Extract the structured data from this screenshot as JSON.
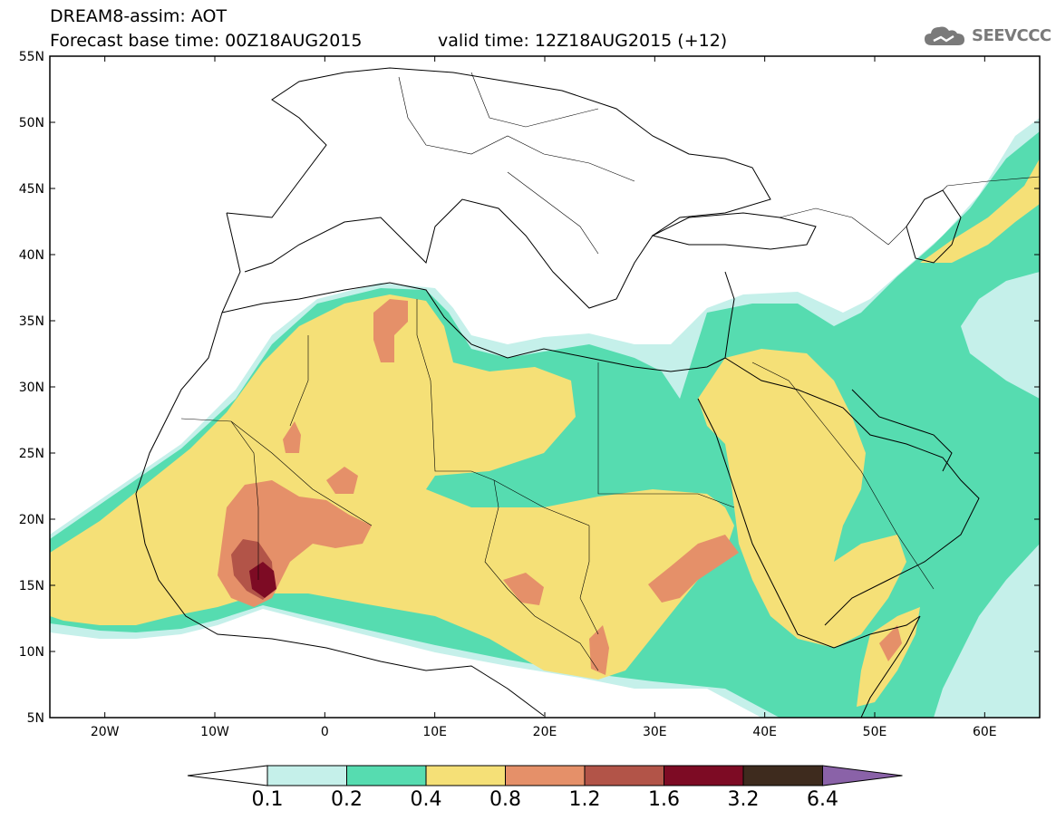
{
  "header": {
    "title": "DREAM8-assim: AOT",
    "base_time": "Forecast base time: 00Z18AUG2015",
    "valid_time": "valid time: 12Z18AUG2015 (+12)"
  },
  "logo": {
    "text": "SEEVCCC",
    "icon": "cloud-logo-icon"
  },
  "map": {
    "lon_range": [
      -25,
      65
    ],
    "lat_range": [
      5,
      55
    ],
    "lat_ticks": [
      "5N",
      "10N",
      "15N",
      "20N",
      "25N",
      "30N",
      "35N",
      "40N",
      "45N",
      "50N",
      "55N"
    ],
    "lon_ticks": [
      "20W",
      "10W",
      "0",
      "10E",
      "20E",
      "30E",
      "40E",
      "50E",
      "60E"
    ],
    "land_color": "#ffffff",
    "border_color": "#000000"
  },
  "colorbar": {
    "levels": [
      "0.1",
      "0.2",
      "0.4",
      "0.8",
      "1.2",
      "1.6",
      "3.2",
      "6.4"
    ],
    "colors": [
      "#ffffff",
      "#c5f0ea",
      "#56dcb0",
      "#f5e077",
      "#e59069",
      "#b25448",
      "#7d0b24",
      "#3e2b1e",
      "#8a62a8"
    ]
  }
}
